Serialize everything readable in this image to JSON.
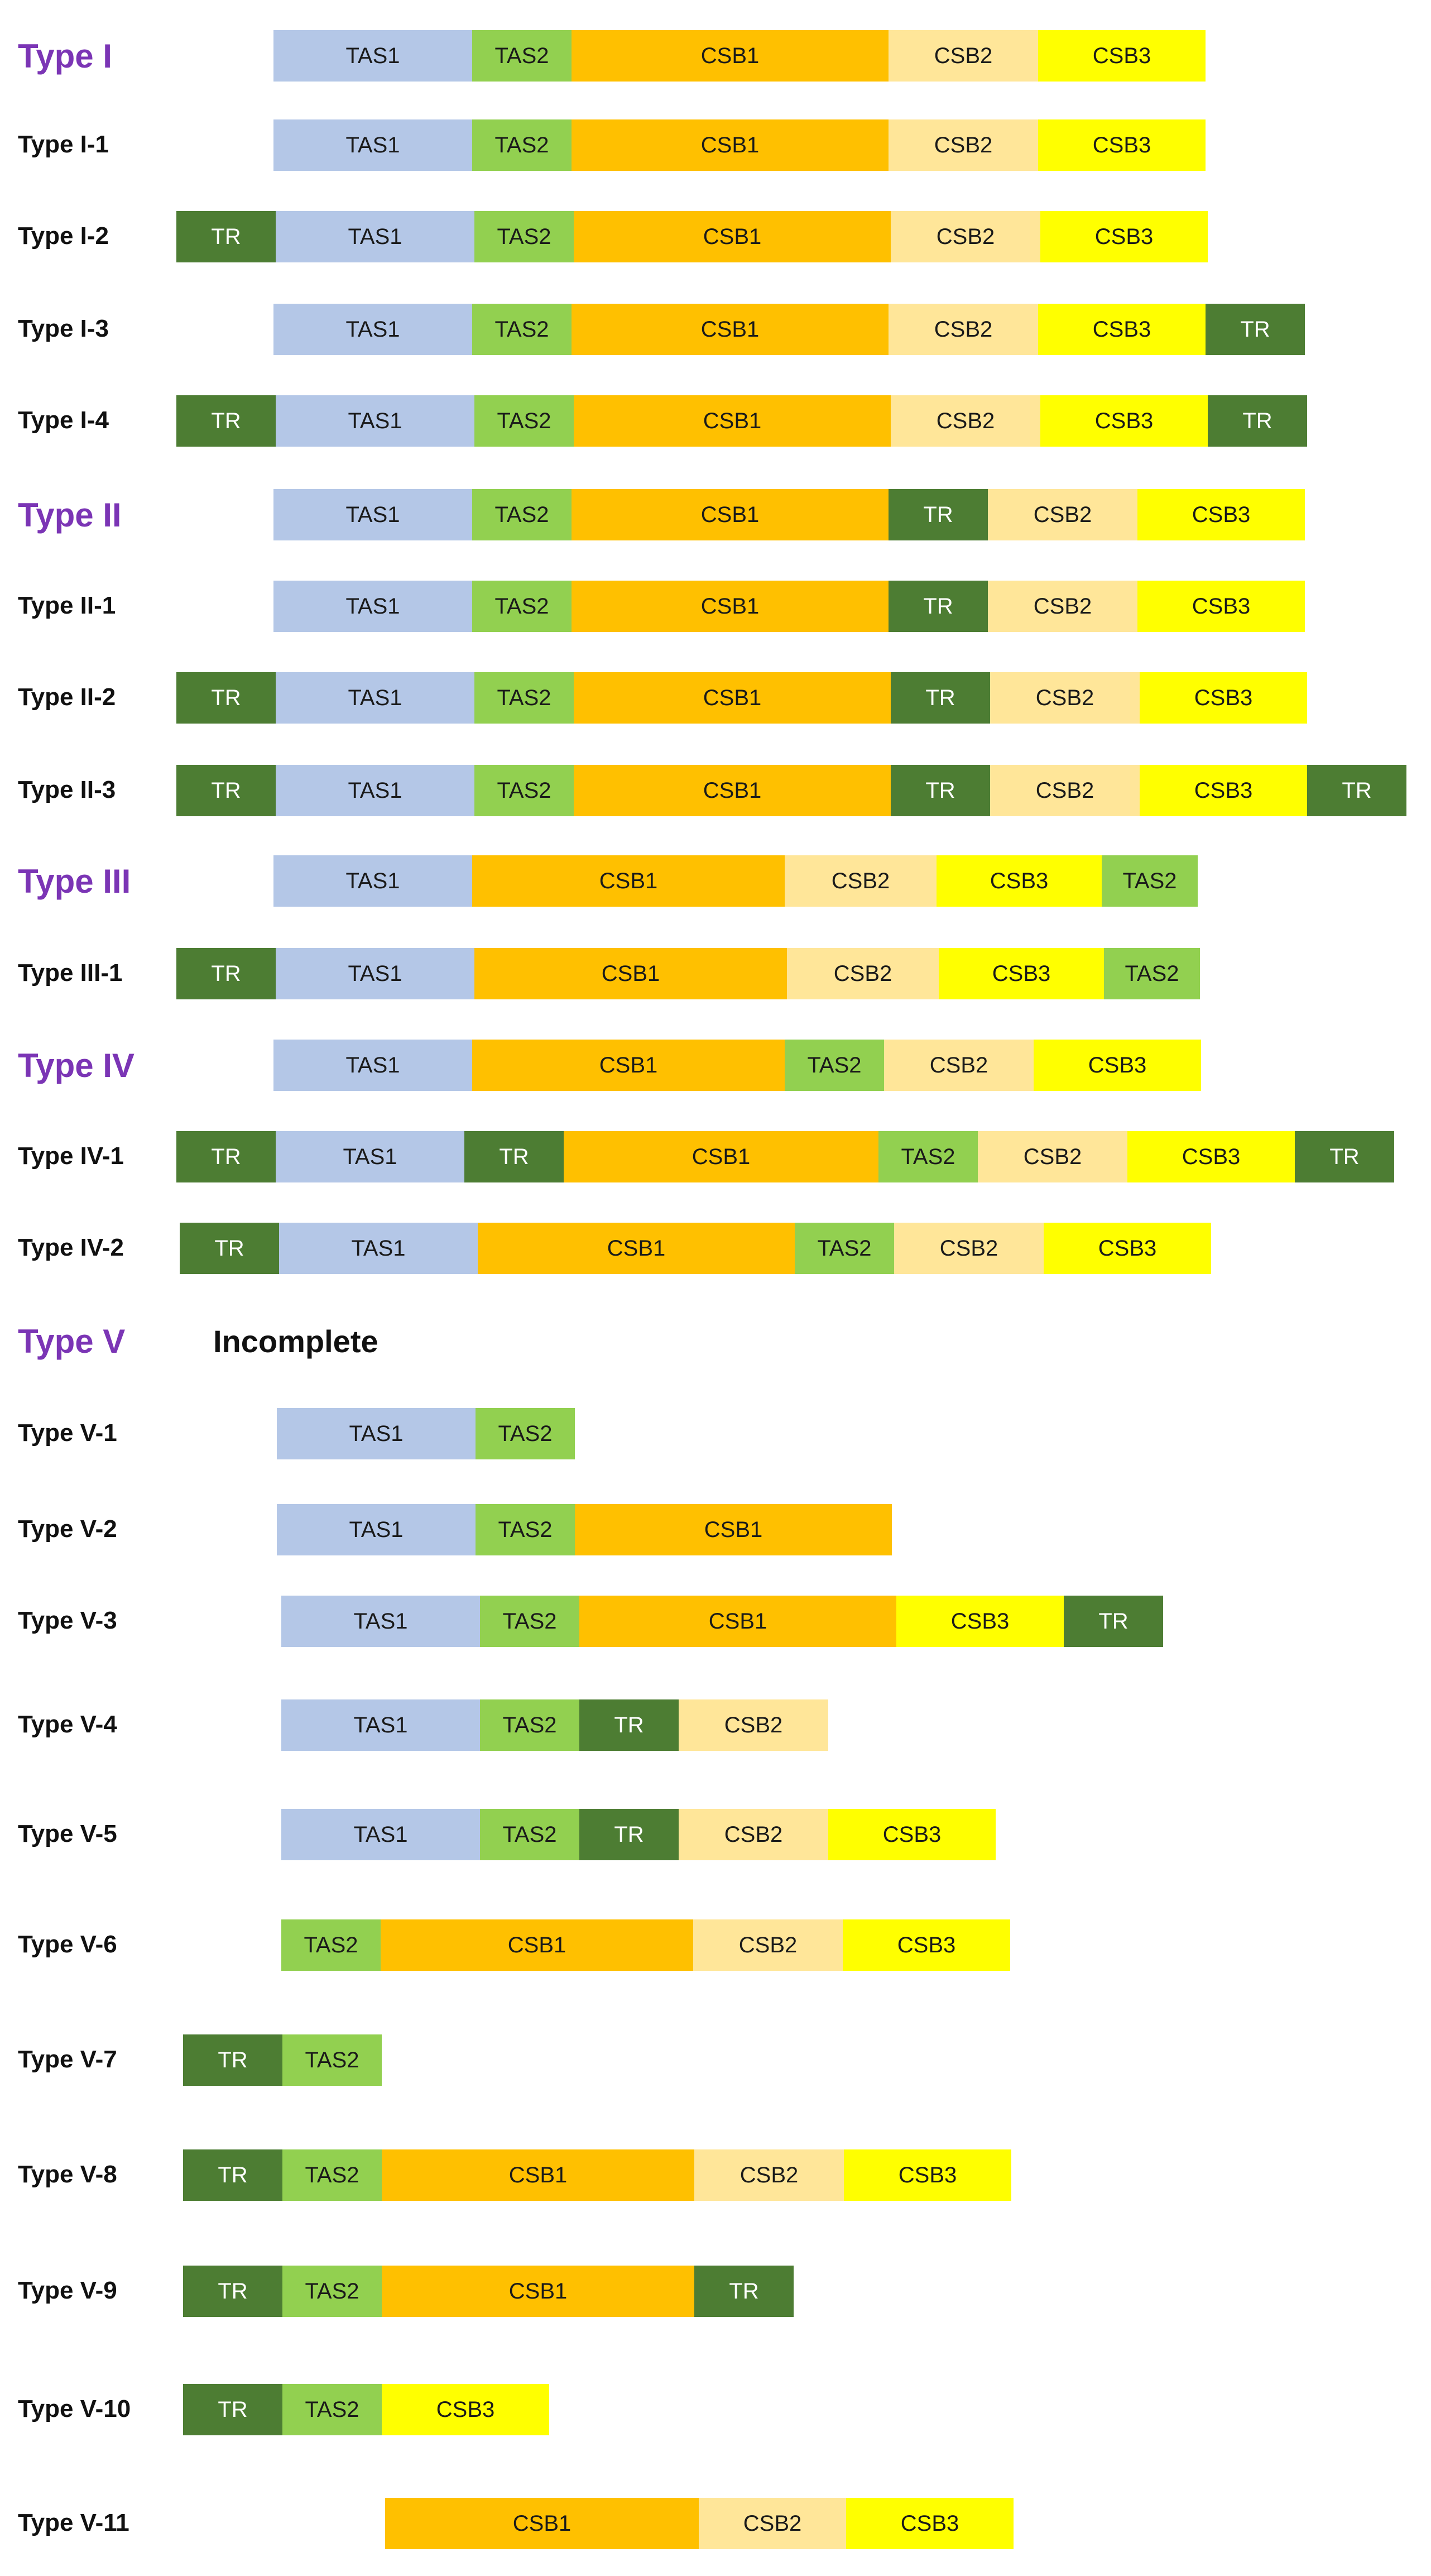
{
  "legend_colors": {
    "TR": "#4d7d33",
    "TAS1": "#b4c7e7",
    "TAS2": "#92d050",
    "CSB1": "#ffc000",
    "CSB2": "#ffe699",
    "CSB3": "#ffff00"
  },
  "label_colors": {
    "major": "#7b35b5",
    "minor": "#111111"
  },
  "rows": [
    {
      "label": "Type I",
      "major": true,
      "segments": [
        "TAS1",
        "TAS2",
        "CSB1",
        "CSB2",
        "CSB3"
      ]
    },
    {
      "label": "Type I-1",
      "major": false,
      "segments": [
        "TAS1",
        "TAS2",
        "CSB1",
        "CSB2",
        "CSB3"
      ]
    },
    {
      "label": "Type I-2",
      "major": false,
      "segments": [
        "TR",
        "TAS1",
        "TAS2",
        "CSB1",
        "CSB2",
        "CSB3"
      ]
    },
    {
      "label": "Type I-3",
      "major": false,
      "segments": [
        "TAS1",
        "TAS2",
        "CSB1",
        "CSB2",
        "CSB3",
        "TR"
      ]
    },
    {
      "label": "Type I-4",
      "major": false,
      "segments": [
        "TR",
        "TAS1",
        "TAS2",
        "CSB1",
        "CSB2",
        "CSB3",
        "TR"
      ]
    },
    {
      "label": "Type II",
      "major": true,
      "segments": [
        "TAS1",
        "TAS2",
        "CSB1",
        "TR",
        "CSB2",
        "CSB3"
      ]
    },
    {
      "label": "Type II-1",
      "major": false,
      "segments": [
        "TAS1",
        "TAS2",
        "CSB1",
        "TR",
        "CSB2",
        "CSB3"
      ]
    },
    {
      "label": "Type II-2",
      "major": false,
      "segments": [
        "TR",
        "TAS1",
        "TAS2",
        "CSB1",
        "TR",
        "CSB2",
        "CSB3"
      ]
    },
    {
      "label": "Type II-3",
      "major": false,
      "segments": [
        "TR",
        "TAS1",
        "TAS2",
        "CSB1",
        "TR",
        "CSB2",
        "CSB3",
        "TR"
      ]
    },
    {
      "label": "Type III",
      "major": true,
      "segments": [
        "TAS1",
        "CSB1",
        "CSB2",
        "CSB3",
        "TAS2"
      ]
    },
    {
      "label": "Type III-1",
      "major": false,
      "segments": [
        "TR",
        "TAS1",
        "CSB1",
        "CSB2",
        "CSB3",
        "TAS2"
      ]
    },
    {
      "label": "Type IV",
      "major": true,
      "segments": [
        "TAS1",
        "CSB1",
        "TAS2",
        "CSB2",
        "CSB3"
      ]
    },
    {
      "label": "Type IV-1",
      "major": false,
      "segments": [
        "TR",
        "TAS1",
        "TR",
        "CSB1",
        "TAS2",
        "CSB2",
        "CSB3",
        "TR"
      ]
    },
    {
      "label": "Type IV-2",
      "major": false,
      "segments": [
        "TR",
        "TAS1",
        "CSB1",
        "TAS2",
        "CSB2",
        "CSB3"
      ]
    },
    {
      "label": "Type V",
      "major": true,
      "note": "Incomplete",
      "segments": []
    },
    {
      "label": "Type V-1",
      "major": false,
      "segments": [
        "TAS1",
        "TAS2"
      ]
    },
    {
      "label": "Type V-2",
      "major": false,
      "segments": [
        "TAS1",
        "TAS2",
        "CSB1"
      ]
    },
    {
      "label": "Type V-3",
      "major": false,
      "segments": [
        "TAS1",
        "TAS2",
        "CSB1",
        "CSB3",
        "TR"
      ]
    },
    {
      "label": "Type V-4",
      "major": false,
      "segments": [
        "TAS1",
        "TAS2",
        "TR",
        "CSB2"
      ]
    },
    {
      "label": "Type V-5",
      "major": false,
      "segments": [
        "TAS1",
        "TAS2",
        "TR",
        "CSB2",
        "CSB3"
      ]
    },
    {
      "label": "Type V-6",
      "major": false,
      "segments": [
        "TAS2",
        "CSB1",
        "CSB2",
        "CSB3"
      ]
    },
    {
      "label": "Type V-7",
      "major": false,
      "segments": [
        "TR",
        "TAS2"
      ]
    },
    {
      "label": "Type V-8",
      "major": false,
      "segments": [
        "TR",
        "TAS2",
        "CSB1",
        "CSB2",
        "CSB3"
      ]
    },
    {
      "label": "Type V-9",
      "major": false,
      "segments": [
        "TR",
        "TAS2",
        "CSB1",
        "TR"
      ]
    },
    {
      "label": "Type V-10",
      "major": false,
      "segments": [
        "TR",
        "TAS2",
        "CSB3"
      ]
    },
    {
      "label": "Type V-11",
      "major": false,
      "segments": [
        "CSB1",
        "CSB2",
        "CSB3"
      ]
    }
  ]
}
